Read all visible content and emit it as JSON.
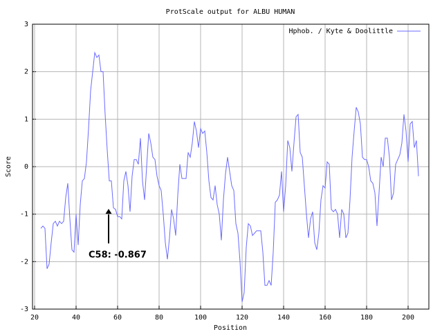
{
  "chart_data": {
    "type": "line",
    "title": "ProtScale output for ALBU HUMAN",
    "x_label": "Position",
    "y_label": "Score",
    "annotation": "C58: -0.867",
    "x": [
      23,
      24,
      25,
      26,
      27,
      28,
      29,
      30,
      31,
      32,
      33,
      34,
      35,
      36,
      37,
      38,
      39,
      40,
      41,
      42,
      43,
      44,
      45,
      46,
      47,
      48,
      49,
      50,
      51,
      52,
      53,
      54,
      55,
      56,
      57,
      58,
      59,
      60,
      61,
      62,
      63,
      64,
      65,
      66,
      67,
      68,
      69,
      70,
      71,
      72,
      73,
      74,
      75,
      76,
      77,
      78,
      79,
      80,
      81,
      82,
      83,
      84,
      85,
      86,
      87,
      88,
      89,
      90,
      91,
      92,
      93,
      94,
      95,
      96,
      97,
      98,
      99,
      100,
      101,
      102,
      103,
      104,
      105,
      106,
      107,
      108,
      109,
      110,
      111,
      112,
      113,
      114,
      115,
      116,
      117,
      118,
      119,
      120,
      121,
      122,
      123,
      124,
      125,
      126,
      127,
      128,
      129,
      130,
      131,
      132,
      133,
      134,
      135,
      136,
      137,
      138,
      139,
      140,
      141,
      142,
      143,
      144,
      145,
      146,
      147,
      148,
      149,
      150,
      151,
      152,
      153,
      154,
      155,
      156,
      157,
      158,
      159,
      160,
      161,
      162,
      163,
      164,
      165,
      166,
      167,
      168,
      169,
      170,
      171,
      172,
      173,
      174,
      175,
      176,
      177,
      178,
      179,
      180,
      181,
      182,
      183,
      184,
      185,
      186,
      187,
      188,
      189,
      190,
      191,
      192,
      193,
      194,
      195,
      196,
      197,
      198,
      199,
      200,
      201,
      202,
      203,
      204,
      205
    ],
    "series": [
      {
        "name": "Hphob. / Kyte & Doolittle",
        "color": "#6a6aff",
        "values": [
          -1.3,
          -1.25,
          -1.3,
          -2.15,
          -2.05,
          -1.6,
          -1.2,
          -1.15,
          -1.25,
          -1.15,
          -1.2,
          -1.15,
          -0.65,
          -0.35,
          -1.1,
          -1.75,
          -1.8,
          -1.0,
          -1.65,
          -0.8,
          -0.3,
          -0.25,
          0.1,
          0.8,
          1.6,
          2.0,
          2.4,
          2.3,
          2.35,
          2.0,
          2.0,
          1.1,
          0.35,
          -0.3,
          -0.3,
          -0.867,
          -0.9,
          -1.05,
          -1.05,
          -1.1,
          -0.3,
          -0.1,
          -0.4,
          -0.95,
          -0.2,
          0.15,
          0.15,
          0.05,
          0.6,
          -0.3,
          -0.7,
          0.0,
          0.7,
          0.5,
          0.2,
          0.15,
          -0.2,
          -0.4,
          -0.5,
          -1.0,
          -1.6,
          -1.95,
          -1.5,
          -0.9,
          -1.1,
          -1.45,
          -0.6,
          0.05,
          -0.25,
          -0.25,
          -0.25,
          0.3,
          0.2,
          0.5,
          0.95,
          0.75,
          0.4,
          0.8,
          0.7,
          0.75,
          0.3,
          -0.3,
          -0.65,
          -0.7,
          -0.4,
          -0.8,
          -1.0,
          -1.55,
          -0.7,
          -0.15,
          0.2,
          -0.1,
          -0.4,
          -0.5,
          -1.2,
          -1.4,
          -2.0,
          -2.85,
          -2.65,
          -1.7,
          -1.2,
          -1.25,
          -1.45,
          -1.4,
          -1.35,
          -1.35,
          -1.35,
          -1.8,
          -2.5,
          -2.5,
          -2.4,
          -2.5,
          -1.8,
          -0.75,
          -0.7,
          -0.6,
          -0.1,
          -0.95,
          -0.4,
          0.55,
          0.4,
          -0.1,
          0.5,
          1.05,
          1.1,
          0.3,
          0.2,
          -0.4,
          -1.0,
          -1.5,
          -1.1,
          -0.95,
          -1.6,
          -1.75,
          -1.4,
          -0.7,
          -0.4,
          -0.45,
          0.1,
          0.05,
          -0.9,
          -0.95,
          -0.9,
          -1.0,
          -1.5,
          -0.9,
          -1.0,
          -1.5,
          -1.4,
          -0.7,
          0.2,
          0.75,
          1.25,
          1.15,
          0.9,
          0.2,
          0.15,
          0.15,
          0.0,
          -0.3,
          -0.35,
          -0.55,
          -1.25,
          -0.55,
          0.2,
          0.0,
          0.6,
          0.6,
          0.2,
          -0.7,
          -0.55,
          0.05,
          0.15,
          0.25,
          0.5,
          1.1,
          0.75,
          0.1,
          0.9,
          0.95,
          0.4,
          0.55,
          -0.2
        ]
      }
    ],
    "xlim": [
      19,
      210
    ],
    "xticks": [
      20,
      40,
      60,
      80,
      100,
      120,
      140,
      160,
      180,
      200
    ],
    "ylim": [
      -3,
      3
    ],
    "yticks": [
      -3,
      -2,
      -1,
      0,
      1,
      2,
      3
    ],
    "grid": true,
    "legend": "top-right"
  }
}
